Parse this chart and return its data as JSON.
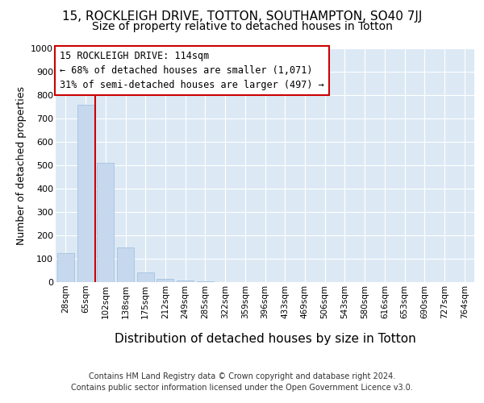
{
  "title1": "15, ROCKLEIGH DRIVE, TOTTON, SOUTHAMPTON, SO40 7JJ",
  "title2": "Size of property relative to detached houses in Totton",
  "xlabel": "Distribution of detached houses by size in Totton",
  "ylabel": "Number of detached properties",
  "footer1": "Contains HM Land Registry data © Crown copyright and database right 2024.",
  "footer2": "Contains public sector information licensed under the Open Government Licence v3.0.",
  "annotation_line1": "15 ROCKLEIGH DRIVE: 114sqm",
  "annotation_line2": "← 68% of detached houses are smaller (1,071)",
  "annotation_line3": "31% of semi-detached houses are larger (497) →",
  "bar_labels": [
    "28sqm",
    "65sqm",
    "102sqm",
    "138sqm",
    "175sqm",
    "212sqm",
    "249sqm",
    "285sqm",
    "322sqm",
    "359sqm",
    "396sqm",
    "433sqm",
    "469sqm",
    "506sqm",
    "543sqm",
    "580sqm",
    "616sqm",
    "653sqm",
    "690sqm",
    "727sqm",
    "764sqm"
  ],
  "bar_values": [
    125,
    760,
    510,
    150,
    40,
    15,
    8,
    2,
    0,
    0,
    0,
    0,
    0,
    0,
    0,
    0,
    0,
    0,
    0,
    0,
    0
  ],
  "bar_color": "#c5d8ee",
  "bar_edge_color": "#9bbcdb",
  "vline_position": 1.5,
  "vline_color": "#cc0000",
  "annotation_box_bg": "#ffffff",
  "annotation_box_edge": "#cc0000",
  "ylim_max": 1000,
  "ytick_step": 100,
  "fig_bg_color": "#ffffff",
  "plot_bg_color": "#dce9f5",
  "grid_color": "#ffffff",
  "title1_fontsize": 11,
  "title2_fontsize": 10,
  "xlabel_fontsize": 11,
  "ylabel_fontsize": 9,
  "tick_label_fontsize": 8,
  "xtick_fontsize": 7.5,
  "annotation_fontsize": 8.5,
  "footer_fontsize": 7
}
